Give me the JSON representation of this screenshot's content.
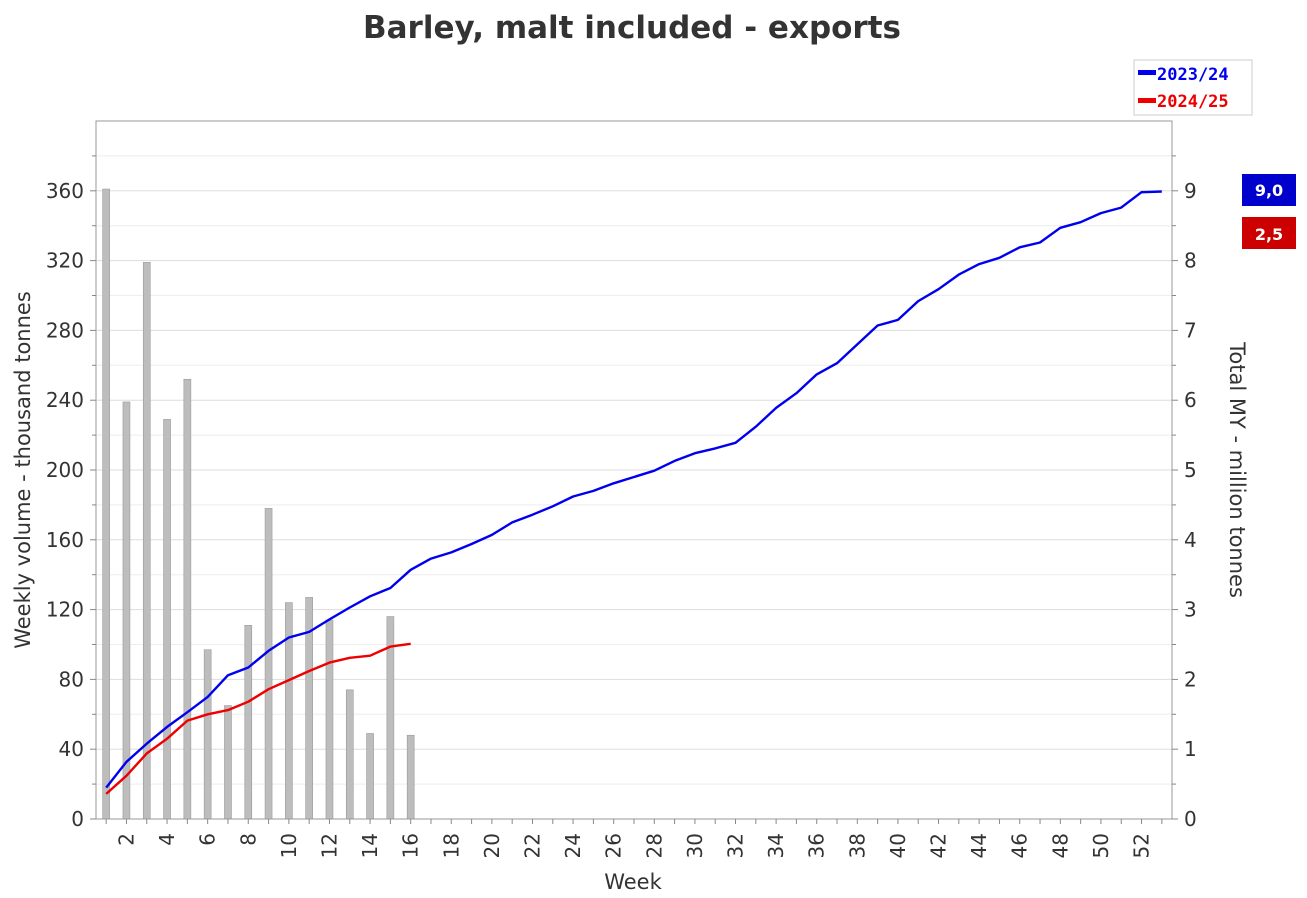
{
  "chart_data": {
    "type": "bar+line",
    "title": "Barley, malt included - exports",
    "xlabel": "Week",
    "ylabel_left": "Weekly volume - thousand tonnes",
    "ylabel_right": "Total MY - million tonnes",
    "ylim_left": [
      0,
      400
    ],
    "ylim_right": [
      0,
      10
    ],
    "yticks_left": [
      "0",
      "40",
      "80",
      "120",
      "160",
      "200",
      "240",
      "280",
      "320",
      "360"
    ],
    "yticks_right": [
      "0",
      "1",
      "2",
      "3",
      "4",
      "5",
      "6",
      "7",
      "8",
      "9"
    ],
    "xticks": [
      "2",
      "4",
      "6",
      "8",
      "10",
      "12",
      "14",
      "16",
      "18",
      "20",
      "22",
      "24",
      "26",
      "28",
      "30",
      "32",
      "34",
      "36",
      "38",
      "40",
      "42",
      "44",
      "46",
      "48",
      "50",
      "52"
    ],
    "grid": true,
    "legend_position": "top-right",
    "bars": {
      "axis": "left",
      "color": "#bdbdbd",
      "weeks": [
        1,
        2,
        3,
        4,
        5,
        6,
        7,
        8,
        9,
        10,
        11,
        12,
        13,
        14,
        15,
        16
      ],
      "values": [
        361,
        239,
        319,
        229,
        252,
        97,
        65,
        111,
        178,
        124,
        127,
        114,
        74,
        49,
        116,
        48
      ]
    },
    "series": [
      {
        "name": "2023/24",
        "axis": "right",
        "color": "#0000ee",
        "values": [
          0.45,
          0.82,
          1.08,
          1.32,
          1.53,
          1.75,
          2.06,
          2.17,
          2.41,
          2.6,
          2.68,
          2.86,
          3.03,
          3.19,
          3.31,
          3.57,
          3.73,
          3.82,
          3.94,
          4.07,
          4.25,
          4.36,
          4.48,
          4.62,
          4.7,
          4.81,
          4.9,
          4.99,
          5.13,
          5.24,
          5.31,
          5.39,
          5.62,
          5.89,
          6.1,
          6.37,
          6.53,
          6.8,
          7.07,
          7.15,
          7.42,
          7.59,
          7.8,
          7.95,
          8.04,
          8.19,
          8.26,
          8.47,
          8.55,
          8.68,
          8.76,
          8.98,
          8.99
        ]
      },
      {
        "name": "2024/25",
        "axis": "right",
        "color": "#ee0000",
        "values": [
          0.36,
          0.62,
          0.94,
          1.15,
          1.41,
          1.5,
          1.56,
          1.68,
          1.86,
          1.99,
          2.12,
          2.24,
          2.31,
          2.34,
          2.47,
          2.51
        ]
      }
    ],
    "end_badges": [
      {
        "label": "9,0",
        "color": "#0000cc"
      },
      {
        "label": "2,5",
        "color": "#cc0000"
      }
    ]
  }
}
